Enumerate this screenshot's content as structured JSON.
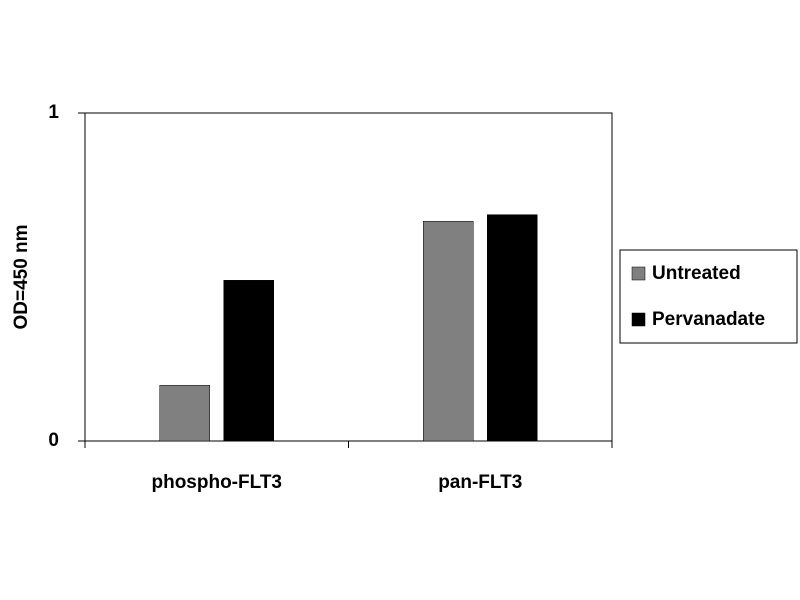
{
  "chart_data": {
    "type": "bar",
    "y_label": "OD=450 nm",
    "categories": [
      "phospho-FLT3",
      "pan-FLT3"
    ],
    "series": [
      {
        "name": "Untreated",
        "color": "#808080",
        "values": [
          0.17,
          0.67
        ]
      },
      {
        "name": "Pervanadate",
        "color": "#000000",
        "values": [
          0.49,
          0.69
        ]
      }
    ],
    "ylim": [
      0,
      1
    ],
    "yticks": [
      0,
      1
    ],
    "grid": false,
    "legend": "right"
  }
}
